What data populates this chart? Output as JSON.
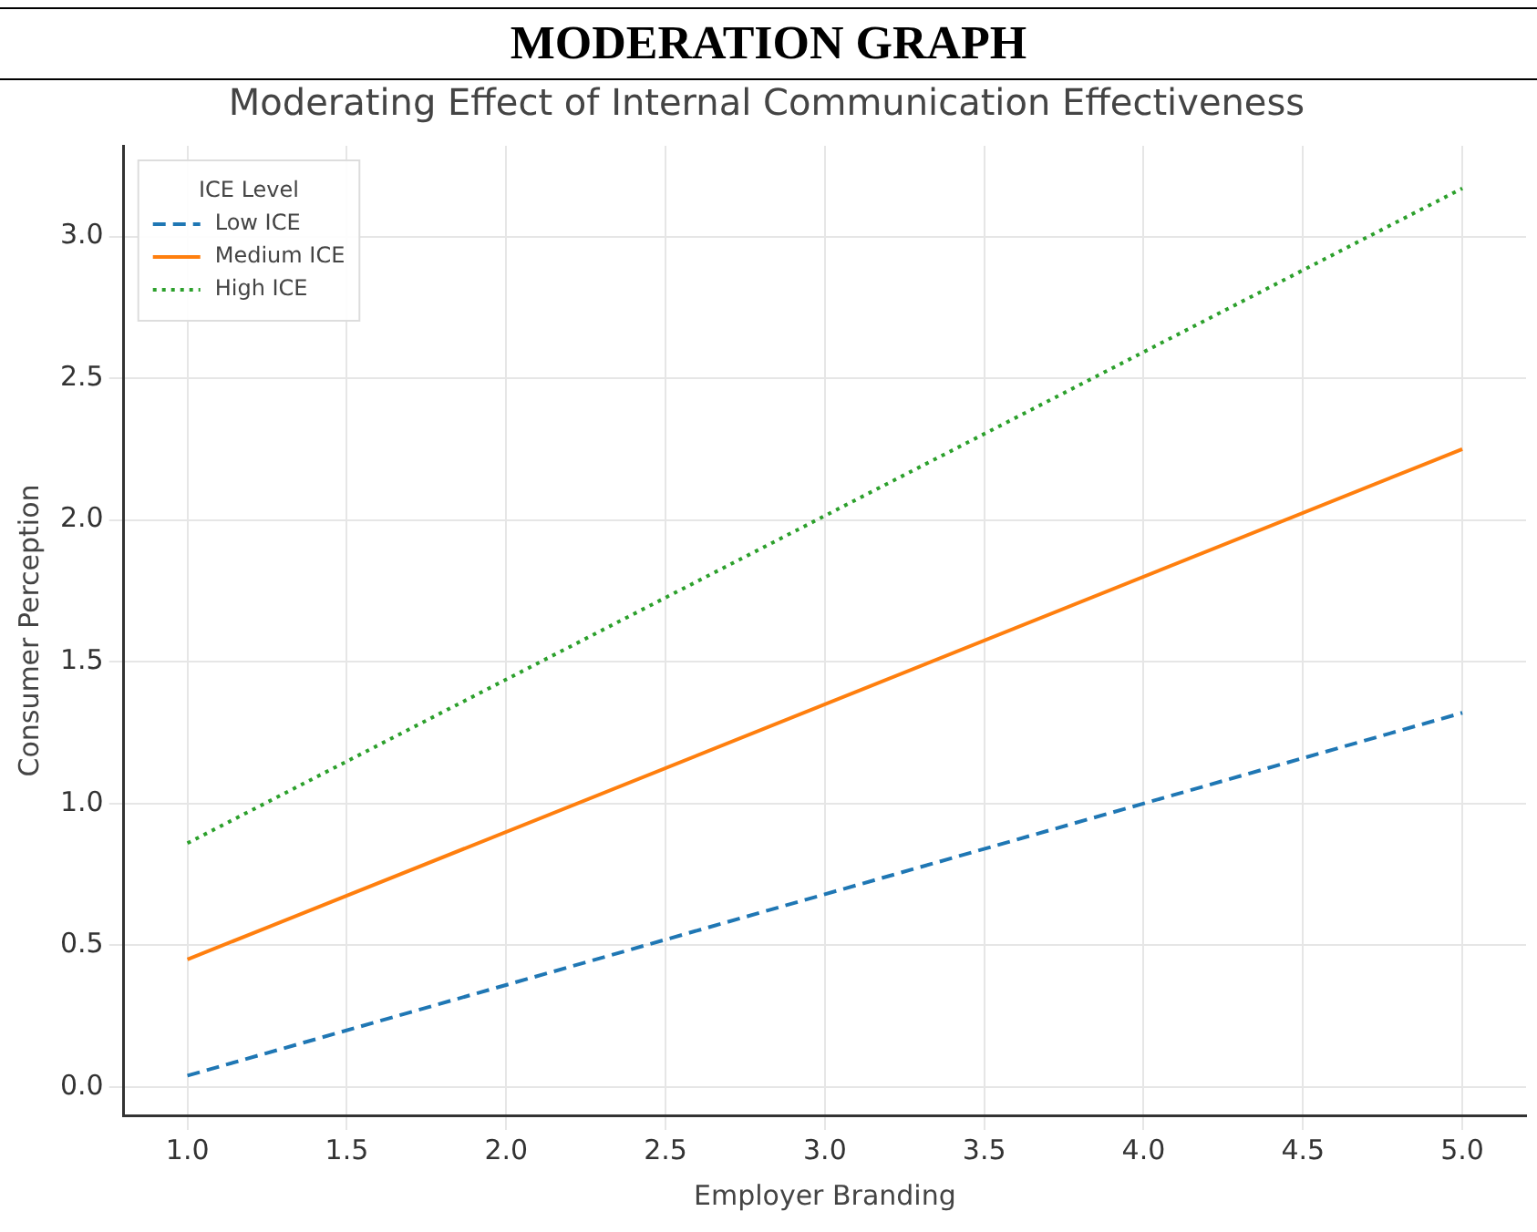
{
  "chart_data": {
    "type": "line",
    "title": "MODERATION GRAPH",
    "subtitle": "Moderating Effect of Internal Communication Effectiveness",
    "xlabel": "Employer Branding",
    "ylabel": "Consumer Perception",
    "legend_title": "ICE Level",
    "x": [
      1.0,
      5.0
    ],
    "series": [
      {
        "name": "Low ICE",
        "color": "#1f77b4",
        "values": [
          0.04,
          1.32
        ],
        "line_style": "dashed"
      },
      {
        "name": "Medium ICE",
        "color": "#ff7f0e",
        "values": [
          0.45,
          2.25
        ],
        "line_style": "solid"
      },
      {
        "name": "High ICE",
        "color": "#2ca02c",
        "values": [
          0.86,
          3.17
        ],
        "line_style": "dotted"
      }
    ],
    "xlim": [
      0.8,
      5.2
    ],
    "xticks": [
      {
        "value": 1,
        "label": "1.0"
      },
      1.5,
      {
        "value": 2,
        "label": "2.0"
      },
      2.5,
      {
        "value": 3,
        "label": "3.0"
      },
      3.5,
      {
        "value": 4,
        "label": "4.0"
      },
      4.5,
      {
        "value": 5,
        "label": "5.0"
      }
    ],
    "ylim": [
      -0.1,
      3.32
    ],
    "yticks": [
      {
        "value": 0,
        "label": "0.0"
      },
      0.5,
      {
        "value": 1,
        "label": "1.0"
      },
      1.5,
      {
        "value": 2,
        "label": "2.0"
      },
      2.5,
      {
        "value": 3,
        "label": "3.0"
      }
    ],
    "grid": true,
    "legend": "top left",
    "marker": "none"
  }
}
